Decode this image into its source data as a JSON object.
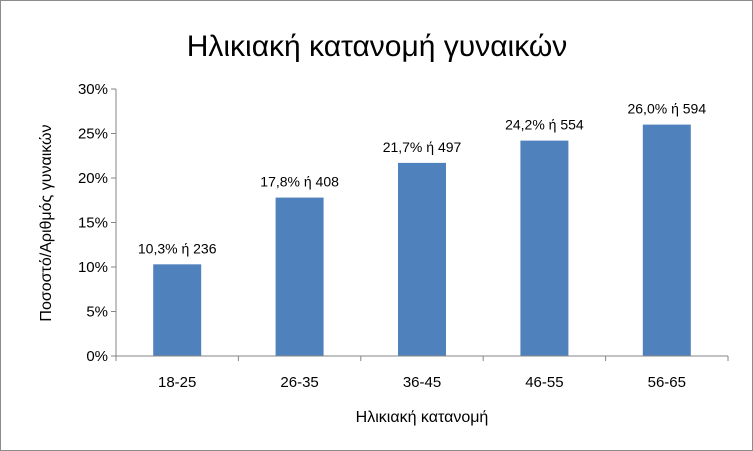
{
  "chart_data": {
    "type": "bar",
    "title": "Ηλικιακή κατανομή γυναικών",
    "xlabel": "Ηλικιακή κατανομή",
    "ylabel": "Ποσοστό/Αριθμός γυναικών",
    "categories": [
      "18-25",
      "26-35",
      "36-45",
      "46-55",
      "56-65"
    ],
    "values": [
      10.3,
      17.8,
      21.7,
      24.2,
      26.0
    ],
    "data_labels": [
      "10,3% ή 236",
      "17,8% ή 408",
      "21,7%  ή 497",
      "24,2% ή 554",
      "26,0% ή 594"
    ],
    "ylim": [
      0,
      30
    ],
    "yticks": [
      0,
      5,
      10,
      15,
      20,
      25,
      30
    ],
    "ytick_labels": [
      "0%",
      "5%",
      "10%",
      "15%",
      "20%",
      "25%",
      "30%"
    ],
    "grid": false,
    "legend": "none",
    "colors": {
      "bar": "#4f81bd",
      "axis": "#868686"
    }
  }
}
